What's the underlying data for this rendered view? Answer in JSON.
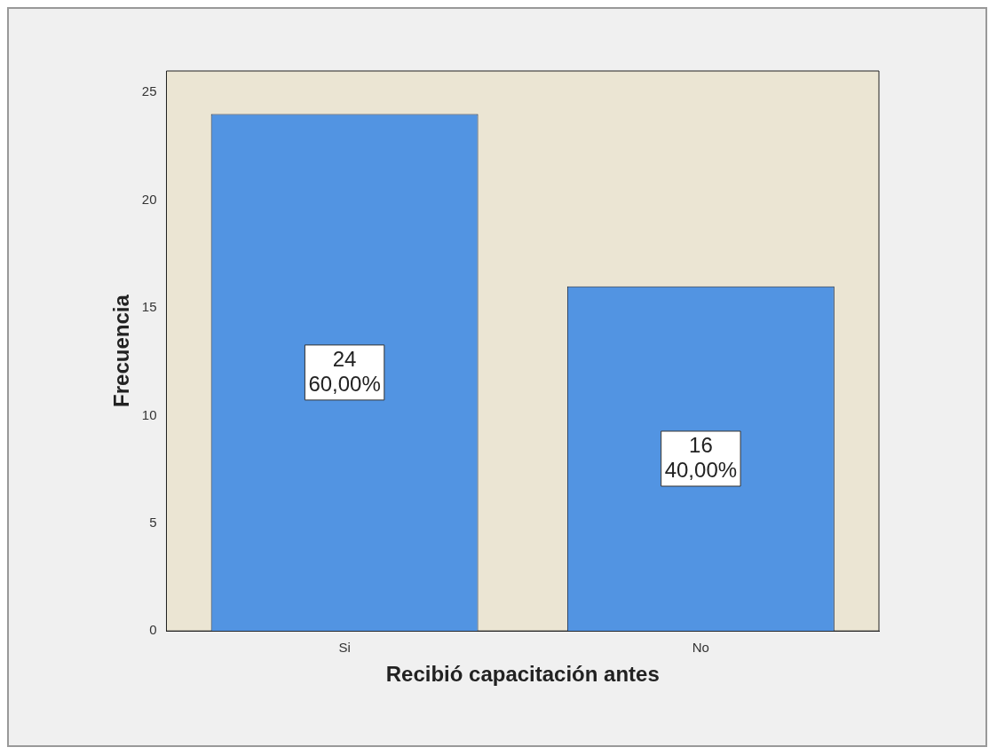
{
  "chart_data": {
    "type": "bar",
    "xlabel": "Recibió capacitación antes",
    "ylabel": "Frecuencia",
    "categories": [
      "Si",
      "No"
    ],
    "values": [
      24,
      16
    ],
    "value_labels": [
      "24\n60,00%",
      "16\n40,00%"
    ],
    "color": "#5294e2",
    "ylim": [
      0,
      26
    ],
    "yticks": [
      0,
      5,
      10,
      15,
      20,
      25
    ]
  }
}
